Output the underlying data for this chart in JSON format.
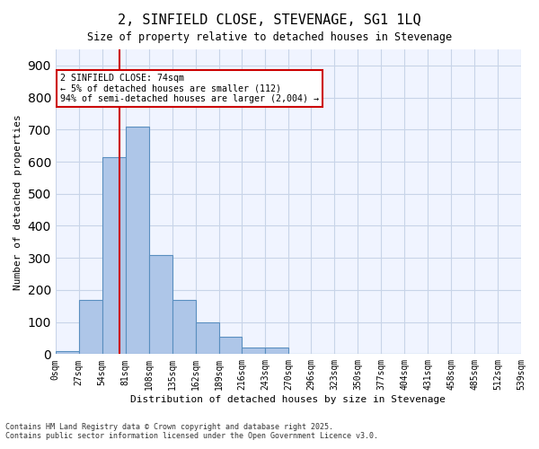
{
  "title_line1": "2, SINFIELD CLOSE, STEVENAGE, SG1 1LQ",
  "title_line2": "Size of property relative to detached houses in Stevenage",
  "xlabel": "Distribution of detached houses by size in Stevenage",
  "ylabel": "Number of detached properties",
  "annotation_line1": "2 SINFIELD CLOSE: 74sqm",
  "annotation_line2": "← 5% of detached houses are smaller (112)",
  "annotation_line3": "94% of semi-detached houses are larger (2,004) →",
  "property_size": 74,
  "bin_edges": [
    0,
    27,
    54,
    81,
    108,
    135,
    162,
    189,
    216,
    243,
    270,
    296,
    323,
    350,
    377,
    404,
    431,
    458,
    485,
    512,
    539
  ],
  "bin_counts": [
    10,
    170,
    615,
    710,
    310,
    170,
    100,
    55,
    20,
    20,
    0,
    0,
    0,
    0,
    0,
    0,
    0,
    0,
    0,
    0
  ],
  "bar_color": "#aec6e8",
  "bar_edge_color": "#5a8fc0",
  "vline_color": "#cc0000",
  "vline_x": 74,
  "annotation_box_color": "#cc0000",
  "background_color": "#f0f4ff",
  "grid_color": "#c8d4e8",
  "ylim": [
    0,
    950
  ],
  "yticks": [
    0,
    100,
    200,
    300,
    400,
    500,
    600,
    700,
    800,
    900
  ],
  "tick_labels": [
    "0sqm",
    "27sqm",
    "54sqm",
    "81sqm",
    "108sqm",
    "135sqm",
    "162sqm",
    "189sqm",
    "216sqm",
    "243sqm",
    "270sqm",
    "296sqm",
    "323sqm",
    "350sqm",
    "377sqm",
    "404sqm",
    "431sqm",
    "458sqm",
    "485sqm",
    "512sqm",
    "539sqm"
  ],
  "footer_line1": "Contains HM Land Registry data © Crown copyright and database right 2025.",
  "footer_line2": "Contains public sector information licensed under the Open Government Licence v3.0."
}
